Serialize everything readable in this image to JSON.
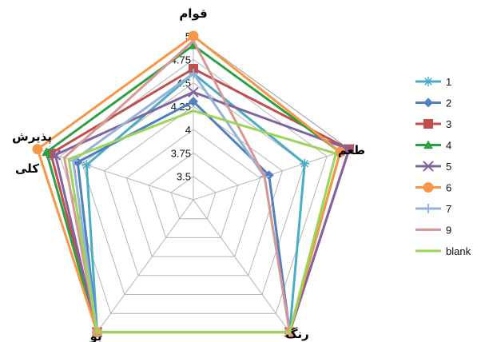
{
  "chart_data": {
    "type": "radar",
    "axes": [
      "قوام",
      "طعم",
      "رنگ",
      "بو",
      "پذیرش کلی"
    ],
    "ticks": [
      "3.5",
      "3.75",
      "4",
      "4.25",
      "4.5",
      "4.75",
      "5"
    ],
    "rlim": [
      3.25,
      5
    ],
    "grid": true,
    "legend_position": "right",
    "series": [
      {
        "name": "1",
        "color": "#4bacc6",
        "marker": "star",
        "values": [
          4.6,
          4.5,
          5,
          5,
          4.45
        ]
      },
      {
        "name": "2",
        "color": "#4f81bd",
        "marker": "diamond",
        "values": [
          4.3,
          4.1,
          5,
          5,
          4.55
        ]
      },
      {
        "name": "3",
        "color": "#c0504d",
        "marker": "square",
        "values": [
          4.65,
          5,
          5,
          5,
          4.85
        ]
      },
      {
        "name": "4",
        "color": "#2ea043",
        "marker": "triangle",
        "values": [
          4.9,
          4.9,
          5,
          5,
          4.9
        ]
      },
      {
        "name": "5",
        "color": "#8064a2",
        "marker": "x",
        "values": [
          4.4,
          5,
          5,
          5,
          4.8
        ]
      },
      {
        "name": "6",
        "color": "#f79646",
        "marker": "circle",
        "values": [
          5,
          4.9,
          5,
          5,
          5
        ]
      },
      {
        "name": "7",
        "color": "#95b3d7",
        "marker": "plus",
        "values": [
          4.6,
          4.05,
          5,
          5,
          4.6
        ]
      },
      {
        "name": "9",
        "color": "#d99694",
        "marker": "none",
        "values": [
          4.95,
          4.05,
          5,
          5,
          4.7
        ]
      },
      {
        "name": "blank",
        "color": "#9bd55a",
        "marker": "none",
        "values": [
          4.2,
          4.85,
          5,
          5,
          4.65
        ]
      }
    ]
  }
}
